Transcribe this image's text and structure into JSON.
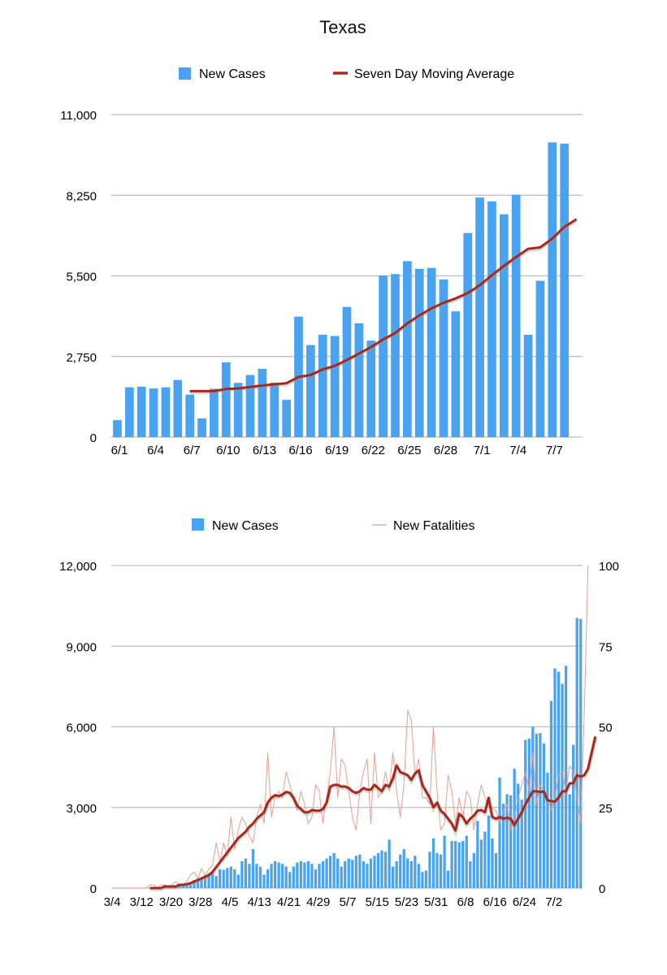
{
  "title": "Texas",
  "colors": {
    "bar": "#4aa3f0",
    "avg_line": "#a8281c",
    "fatal_line": "#e3a08f",
    "grid": "#bdbdbd"
  },
  "chart_data": [
    {
      "type": "bar",
      "legend": {
        "bars": "New Cases",
        "line": "Seven Day Moving Average",
        "placement": "top"
      },
      "ylim": [
        0,
        11000
      ],
      "yticks": [
        "0",
        "2,750",
        "5,500",
        "8,250",
        "11,000"
      ],
      "ytick_values": [
        0,
        2750,
        5500,
        8250,
        11000
      ],
      "xtick_labels": [
        "6/1",
        "6/4",
        "6/7",
        "6/10",
        "6/13",
        "6/16",
        "6/19",
        "6/22",
        "6/25",
        "6/28",
        "7/1",
        "7/4",
        "7/7"
      ],
      "xtick_every": 3,
      "categories": [
        "6/1",
        "6/2",
        "6/3",
        "6/4",
        "6/5",
        "6/6",
        "6/7",
        "6/8",
        "6/9",
        "6/10",
        "6/11",
        "6/12",
        "6/13",
        "6/14",
        "6/15",
        "6/16",
        "6/17",
        "6/18",
        "6/19",
        "6/20",
        "6/21",
        "6/22",
        "6/23",
        "6/24",
        "6/25",
        "6/26",
        "6/27",
        "6/28",
        "6/29",
        "6/30",
        "7/1",
        "7/2",
        "7/3",
        "7/4",
        "7/5",
        "7/6",
        "7/7",
        "7/8",
        "7/9"
      ],
      "values": [
        580,
        1700,
        1720,
        1660,
        1700,
        1950,
        1450,
        640,
        1650,
        2550,
        1850,
        2120,
        2330,
        1860,
        1270,
        4110,
        3140,
        3490,
        3450,
        4440,
        3880,
        3290,
        5510,
        5560,
        6000,
        5740,
        5770,
        5380,
        4290,
        6960,
        8170,
        8040,
        7600,
        8270,
        3490,
        5330,
        10050,
        10010,
        0
      ],
      "moving_average": [
        null,
        null,
        null,
        null,
        null,
        null,
        1570,
        1570,
        1570,
        1640,
        1660,
        1710,
        1760,
        1800,
        1840,
        2050,
        2120,
        2310,
        2430,
        2630,
        2850,
        3070,
        3330,
        3550,
        3880,
        4150,
        4390,
        4580,
        4730,
        4910,
        5180,
        5520,
        5840,
        6140,
        6420,
        6470,
        6770,
        7170,
        7430
      ]
    },
    {
      "type": "bar",
      "legend": {
        "bars": "New Cases",
        "line": "New Fatalities",
        "placement": "top"
      },
      "ylim": [
        0,
        12000
      ],
      "yticks": [
        "0",
        "3,000",
        "6,000",
        "9,000",
        "12,000"
      ],
      "ytick_values": [
        0,
        3000,
        6000,
        9000,
        12000
      ],
      "y2lim": [
        0,
        100
      ],
      "y2ticks": [
        "0",
        "25",
        "50",
        "75",
        "100"
      ],
      "y2tick_values": [
        0,
        25,
        50,
        75,
        100
      ],
      "xtick_labels": [
        "3/4",
        "3/12",
        "3/20",
        "3/28",
        "4/5",
        "4/13",
        "4/21",
        "4/29",
        "5/7",
        "5/15",
        "5/23",
        "5/31",
        "6/8",
        "6/16",
        "6/24",
        "7/2"
      ],
      "start_date": "3/4",
      "days": 128,
      "xtick_every": 8,
      "cases": [
        0,
        0,
        0,
        0,
        0,
        0,
        0,
        0,
        0,
        5,
        10,
        10,
        15,
        20,
        30,
        40,
        60,
        80,
        100,
        130,
        170,
        220,
        300,
        350,
        400,
        480,
        550,
        620,
        450,
        700,
        680,
        750,
        800,
        700,
        500,
        1000,
        1100,
        900,
        1450,
        900,
        800,
        500,
        700,
        900,
        1000,
        950,
        900,
        800,
        600,
        800,
        950,
        1000,
        950,
        1000,
        900,
        700,
        900,
        1000,
        1100,
        1200,
        1300,
        1100,
        800,
        1000,
        1100,
        1050,
        1200,
        1250,
        1000,
        900,
        1100,
        1200,
        1300,
        1400,
        1350,
        1800,
        800,
        1000,
        1250,
        1450,
        1100,
        1000,
        1200,
        900,
        600,
        650,
        1350,
        1850,
        1300,
        1250,
        1950,
        650,
        1750,
        1750,
        1700,
        1750,
        1950,
        1000,
        1300,
        2500,
        1800,
        2100,
        2700,
        1850,
        1300,
        4110,
        3140,
        3490,
        3450,
        4440,
        3880,
        3290,
        5510,
        5560,
        6000,
        5740,
        5770,
        5380,
        4290,
        6960,
        8170,
        8040,
        7600,
        8270,
        3490,
        5330,
        10050,
        10010
      ],
      "fatalities": [
        0,
        0,
        0,
        0,
        0,
        0,
        0,
        0,
        0,
        0,
        1,
        1,
        0,
        1,
        1,
        0,
        1,
        2,
        1,
        1,
        2,
        4,
        5,
        3,
        6,
        4,
        6,
        7,
        14,
        8,
        14,
        10,
        22,
        12,
        18,
        22,
        20,
        16,
        14,
        22,
        26,
        20,
        42,
        22,
        28,
        30,
        28,
        36,
        32,
        28,
        24,
        30,
        26,
        20,
        22,
        32,
        30,
        20,
        28,
        36,
        50,
        28,
        40,
        38,
        30,
        22,
        18,
        30,
        36,
        40,
        20,
        42,
        28,
        30,
        36,
        30,
        42,
        30,
        22,
        32,
        55,
        52,
        35,
        40,
        28,
        28,
        26,
        50,
        30,
        18,
        20,
        35,
        30,
        20,
        28,
        22,
        30,
        28,
        18,
        26,
        32,
        28,
        25,
        25,
        24,
        20,
        24,
        26,
        18,
        22,
        28,
        32,
        36,
        30,
        42,
        26,
        32,
        30,
        28,
        24,
        28,
        35,
        36,
        30,
        38,
        36,
        28,
        20,
        55,
        100
      ],
      "fatalities_moving_average": [
        null,
        null,
        null,
        null,
        null,
        null,
        null,
        null,
        null,
        null,
        0,
        0,
        0,
        0,
        0.5,
        0.5,
        0.5,
        0.5,
        1,
        1,
        1.2,
        1.5,
        2,
        2.5,
        3,
        3.5,
        4,
        5,
        6.5,
        8,
        9.5,
        11,
        12.5,
        14,
        15.5,
        16.5,
        17.5,
        19,
        20,
        21.5,
        22.5,
        23.5,
        26.5,
        28,
        28.8,
        28.5,
        29,
        29.8,
        29.5,
        28,
        25.5,
        24.5,
        23.5,
        23.5,
        24.2,
        24,
        24,
        24.5,
        26.5,
        31.5,
        32,
        32,
        31.5,
        31.5,
        31,
        30,
        29.5,
        30,
        31,
        30.5,
        30.5,
        32,
        31,
        30,
        32,
        31.5,
        34,
        38,
        36,
        35.5,
        35,
        33.5,
        35.5,
        36.5,
        32,
        30,
        28,
        25,
        26.5,
        24,
        23,
        21.5,
        20,
        17.8,
        23,
        22,
        20,
        21.5,
        22.5,
        24,
        24.2,
        23.5,
        28,
        22,
        21.5,
        22,
        21.5,
        21.8,
        21.5,
        19.5,
        21.5,
        23.5,
        26,
        28,
        30,
        30,
        29.8,
        30,
        27.2,
        27,
        26.8,
        28,
        30,
        30,
        32.5,
        32.5,
        35,
        34.5,
        35,
        37,
        42,
        47
      ]
    }
  ]
}
